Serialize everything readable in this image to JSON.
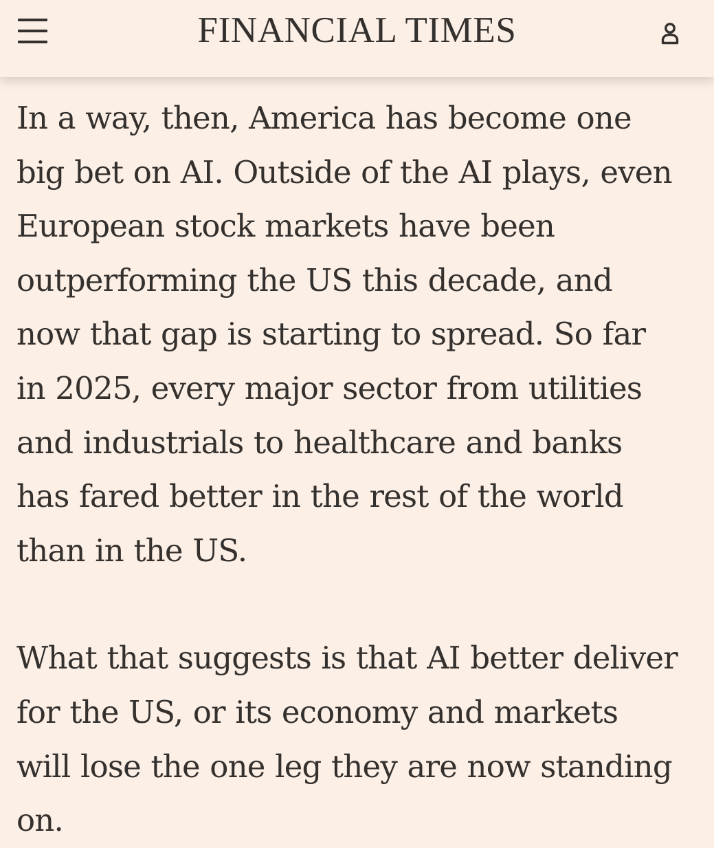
{
  "header": {
    "title": "FINANCIAL TIMES",
    "menu_icon": "hamburger-menu-icon",
    "account_icon": "user-icon"
  },
  "article": {
    "paragraphs": [
      "In a way, then, America has become one\nbig bet on AI. Outside of the AI plays, even\nEuropean stock markets have been\noutperforming the US this decade, and\nnow that gap is starting to spread. So far\nin 2025, every major sector from utilities\nand industrials to healthcare and banks\nhas fared better in the rest of the world\nthan in the US.",
      "What that suggests is that AI better deliver\nfor the US, or its economy and markets\nwill lose the one leg they are now standing\non."
    ]
  },
  "colors": {
    "background": "#fcefe5",
    "text": "#33302e"
  }
}
